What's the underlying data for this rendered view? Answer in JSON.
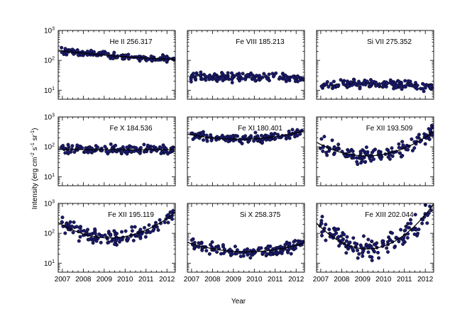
{
  "figure": {
    "xlabel": "Year",
    "ylabel_main": "Intensity (erg cm",
    "ylabel_exp1": "-2",
    "ylabel_mid": " s",
    "ylabel_exp2": "-1",
    "ylabel_mid2": " sr",
    "ylabel_exp3": "-1",
    "ylabel_end": ")"
  },
  "chart_data": [
    {
      "type": "scatter",
      "title": "He II 256.317",
      "xlim": [
        2006.8,
        2012.4
      ],
      "ylim": [
        5,
        1000
      ],
      "yscale": "log",
      "xticks": [
        "2007",
        "2008",
        "2009",
        "2010",
        "2011",
        "2012"
      ],
      "show_xticks": false,
      "yticks": [
        {
          "base": "10",
          "exp": "1"
        },
        {
          "base": "10",
          "exp": "2"
        },
        {
          "base": "10",
          "exp": "3"
        }
      ],
      "fit": {
        "anchors": [
          [
            2007.0,
            210
          ],
          [
            2009.5,
            140
          ],
          [
            2012.3,
            110
          ]
        ]
      },
      "scatter_model": {
        "anchors": [
          [
            2007.0,
            210
          ],
          [
            2009.5,
            140
          ],
          [
            2012.3,
            110
          ]
        ],
        "spread": 0.07,
        "n": 150
      }
    },
    {
      "type": "scatter",
      "title": "Fe VIII 185.213",
      "xlim": [
        2006.8,
        2012.4
      ],
      "ylim": [
        5,
        1000
      ],
      "yscale": "log",
      "xticks": [
        "2007",
        "2008",
        "2009",
        "2010",
        "2011",
        "2012"
      ],
      "show_xticks": false,
      "show_yticks": false,
      "yticks": [
        {
          "base": "10",
          "exp": "1"
        },
        {
          "base": "10",
          "exp": "2"
        },
        {
          "base": "10",
          "exp": "3"
        }
      ],
      "fit": null,
      "scatter_model": {
        "anchors": [
          [
            2007.0,
            27
          ],
          [
            2009.5,
            27
          ],
          [
            2012.3,
            25
          ]
        ],
        "spread": 0.1,
        "n": 150
      }
    },
    {
      "type": "scatter",
      "title": "Si VII 275.352",
      "xlim": [
        2006.8,
        2012.4
      ],
      "ylim": [
        5,
        1000
      ],
      "yscale": "log",
      "xticks": [
        "2007",
        "2008",
        "2009",
        "2010",
        "2011",
        "2012"
      ],
      "show_xticks": false,
      "show_yticks": false,
      "yticks": [
        {
          "base": "10",
          "exp": "1"
        },
        {
          "base": "10",
          "exp": "2"
        },
        {
          "base": "10",
          "exp": "3"
        }
      ],
      "fit": null,
      "scatter_model": {
        "anchors": [
          [
            2007.0,
            14
          ],
          [
            2009.5,
            16
          ],
          [
            2012.3,
            13
          ]
        ],
        "spread": 0.09,
        "n": 150
      }
    },
    {
      "type": "scatter",
      "title": "Fe X 184.536",
      "xlim": [
        2006.8,
        2012.4
      ],
      "ylim": [
        5,
        1000
      ],
      "yscale": "log",
      "xticks": [
        "2007",
        "2008",
        "2009",
        "2010",
        "2011",
        "2012"
      ],
      "show_xticks": false,
      "yticks": [
        {
          "base": "10",
          "exp": "1"
        },
        {
          "base": "10",
          "exp": "2"
        },
        {
          "base": "10",
          "exp": "3"
        }
      ],
      "fit": {
        "anchors": [
          [
            2007.0,
            82
          ],
          [
            2009.5,
            80
          ],
          [
            2012.3,
            80
          ]
        ]
      },
      "scatter_model": {
        "anchors": [
          [
            2007.0,
            82
          ],
          [
            2009.5,
            80
          ],
          [
            2012.3,
            80
          ]
        ],
        "spread": 0.09,
        "n": 150
      }
    },
    {
      "type": "scatter",
      "title": "Fe XI 180.401",
      "xlim": [
        2006.8,
        2012.4
      ],
      "ylim": [
        5,
        1000
      ],
      "yscale": "log",
      "xticks": [
        "2007",
        "2008",
        "2009",
        "2010",
        "2011",
        "2012"
      ],
      "show_xticks": false,
      "show_yticks": false,
      "yticks": [
        {
          "base": "10",
          "exp": "1"
        },
        {
          "base": "10",
          "exp": "2"
        },
        {
          "base": "10",
          "exp": "3"
        }
      ],
      "fit": {
        "anchors": [
          [
            2007.0,
            250
          ],
          [
            2009.5,
            180
          ],
          [
            2012.3,
            330
          ]
        ]
      },
      "scatter_model": {
        "anchors": [
          [
            2007.0,
            250
          ],
          [
            2009.5,
            180
          ],
          [
            2012.3,
            330
          ]
        ],
        "spread": 0.09,
        "n": 150
      }
    },
    {
      "type": "scatter",
      "title": "Fe XII 193.509",
      "xlim": [
        2006.8,
        2012.4
      ],
      "ylim": [
        5,
        1000
      ],
      "yscale": "log",
      "xticks": [
        "2007",
        "2008",
        "2009",
        "2010",
        "2011",
        "2012"
      ],
      "show_xticks": false,
      "show_yticks": false,
      "yticks": [
        {
          "base": "10",
          "exp": "1"
        },
        {
          "base": "10",
          "exp": "2"
        },
        {
          "base": "10",
          "exp": "3"
        }
      ],
      "fit": {
        "anchors": [
          [
            2007.0,
            120
          ],
          [
            2009.4,
            50
          ],
          [
            2012.3,
            290
          ]
        ]
      },
      "scatter_model": {
        "anchors": [
          [
            2007.0,
            120
          ],
          [
            2009.4,
            50
          ],
          [
            2012.3,
            290
          ]
        ],
        "spread": 0.16,
        "n": 150
      }
    },
    {
      "type": "scatter",
      "title": "Fe XII 195.119",
      "xlim": [
        2006.8,
        2012.4
      ],
      "ylim": [
        5,
        1000
      ],
      "yscale": "log",
      "xticks": [
        "2007",
        "2008",
        "2009",
        "2010",
        "2011",
        "2012"
      ],
      "show_xticks": true,
      "yticks": [
        {
          "base": "10",
          "exp": "1"
        },
        {
          "base": "10",
          "exp": "2"
        },
        {
          "base": "10",
          "exp": "3"
        }
      ],
      "fit": {
        "anchors": [
          [
            2007.0,
            190
          ],
          [
            2009.3,
            70
          ],
          [
            2012.3,
            440
          ]
        ]
      },
      "scatter_model": {
        "anchors": [
          [
            2007.0,
            190
          ],
          [
            2009.3,
            70
          ],
          [
            2012.3,
            440
          ]
        ],
        "spread": 0.16,
        "n": 150
      }
    },
    {
      "type": "scatter",
      "title": "Si X 258.375",
      "xlim": [
        2006.8,
        2012.4
      ],
      "ylim": [
        5,
        1000
      ],
      "yscale": "log",
      "xticks": [
        "2007",
        "2008",
        "2009",
        "2010",
        "2011",
        "2012"
      ],
      "show_xticks": true,
      "show_yticks": false,
      "yticks": [
        {
          "base": "10",
          "exp": "1"
        },
        {
          "base": "10",
          "exp": "2"
        },
        {
          "base": "10",
          "exp": "3"
        }
      ],
      "fit": {
        "anchors": [
          [
            2007.0,
            45
          ],
          [
            2009.5,
            24
          ],
          [
            2012.3,
            45
          ]
        ]
      },
      "scatter_model": {
        "anchors": [
          [
            2007.0,
            45
          ],
          [
            2009.5,
            24
          ],
          [
            2012.3,
            45
          ]
        ],
        "spread": 0.11,
        "n": 150
      }
    },
    {
      "type": "scatter",
      "title": "Fe XIII 202.044",
      "xlim": [
        2006.8,
        2012.4
      ],
      "ylim": [
        5,
        1000
      ],
      "yscale": "log",
      "xticks": [
        "2007",
        "2008",
        "2009",
        "2010",
        "2011",
        "2012"
      ],
      "show_xticks": true,
      "show_yticks": false,
      "yticks": [
        {
          "base": "10",
          "exp": "1"
        },
        {
          "base": "10",
          "exp": "2"
        },
        {
          "base": "10",
          "exp": "3"
        }
      ],
      "fit": {
        "anchors": [
          [
            2007.0,
            160
          ],
          [
            2009.2,
            30
          ],
          [
            2012.4,
            950
          ]
        ]
      },
      "scatter_model": {
        "anchors": [
          [
            2007.0,
            160
          ],
          [
            2009.2,
            30
          ],
          [
            2012.4,
            950
          ]
        ],
        "spread": 0.22,
        "n": 150
      }
    }
  ]
}
